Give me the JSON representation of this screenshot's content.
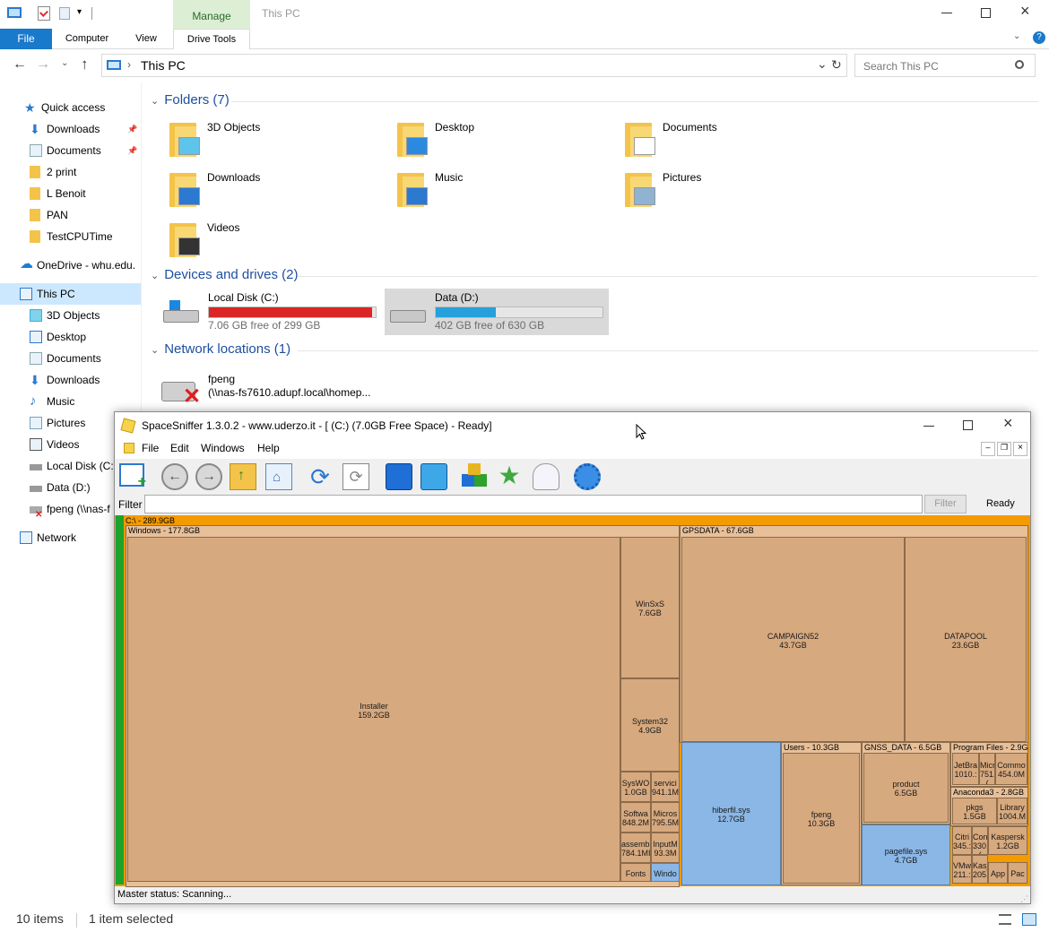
{
  "window": {
    "title": "This PC",
    "manage_tab": "Manage"
  },
  "ribbon": {
    "tabs": [
      "File",
      "Computer",
      "View",
      "Drive Tools"
    ]
  },
  "address": {
    "path": "This PC",
    "search_placeholder": "Search This PC"
  },
  "sidebar": {
    "items": [
      {
        "label": "Quick access",
        "icon": "star-icon"
      },
      {
        "label": "Downloads",
        "icon": "download-icon",
        "pinned": true
      },
      {
        "label": "Documents",
        "icon": "document-icon",
        "pinned": true
      },
      {
        "label": "2 print",
        "icon": "folder-icon"
      },
      {
        "label": "L Benoit",
        "icon": "folder-icon"
      },
      {
        "label": "PAN",
        "icon": "folder-icon"
      },
      {
        "label": "TestCPUTime",
        "icon": "folder-icon"
      },
      {
        "label": "OneDrive - whu.edu.",
        "icon": "cloud-icon"
      },
      {
        "label": "This PC",
        "icon": "computer-icon",
        "selected": true
      },
      {
        "label": "3D Objects",
        "icon": "cube-icon"
      },
      {
        "label": "Desktop",
        "icon": "desktop-icon"
      },
      {
        "label": "Documents",
        "icon": "document-icon"
      },
      {
        "label": "Downloads",
        "icon": "download-icon"
      },
      {
        "label": "Music",
        "icon": "music-icon"
      },
      {
        "label": "Pictures",
        "icon": "picture-icon"
      },
      {
        "label": "Videos",
        "icon": "video-icon"
      },
      {
        "label": "Local Disk (C:)",
        "icon": "drive-icon"
      },
      {
        "label": "Data (D:)",
        "icon": "drive-icon"
      },
      {
        "label": "fpeng (\\\\nas-f",
        "icon": "network-drive-icon"
      },
      {
        "label": "Network",
        "icon": "network-icon"
      }
    ]
  },
  "sections": {
    "folders": "Folders (7)",
    "drives": "Devices and drives (2)",
    "network": "Network locations (1)"
  },
  "folders": [
    "3D Objects",
    "Desktop",
    "Documents",
    "Downloads",
    "Music",
    "Pictures",
    "Videos"
  ],
  "drives": [
    {
      "name": "Local Disk (C:)",
      "free": "7.06 GB free of 299 GB",
      "used_fraction": 0.976,
      "bar_color": "#da2626"
    },
    {
      "name": "Data (D:)",
      "free": "402 GB free of 630 GB",
      "used_fraction": 0.362,
      "bar_color": "#26a0da"
    }
  ],
  "network_locations": [
    {
      "name": "fpeng",
      "path": "(\\\\nas-fs7610.adupf.local\\homep..."
    }
  ],
  "status": {
    "items": "10 items",
    "selected": "1 item selected"
  },
  "spacesniffer": {
    "title": "SpaceSniffer 1.3.0.2 - www.uderzo.it - [ (C:) (7.0GB Free Space) - Ready]",
    "menu": [
      "File",
      "Edit",
      "Windows",
      "Help"
    ],
    "filter_label": "Filter",
    "filter_button": "Filter",
    "state": "Ready",
    "master_status": "Master status: Scanning...",
    "root": "C:\\ - 289.9GB",
    "windows_header": "Windows - 177.8GB",
    "gpsdata_header": "GPSDATA - 67.6GB",
    "users_header": "Users - 10.3GB",
    "gnss_header": "GNSS_DATA - 6.5GB",
    "progfiles_header": "Program Files - 2.9G",
    "anaconda_header": "Anaconda3 - 2.8GB",
    "cells": {
      "installer": [
        "Installer",
        "159.2GB"
      ],
      "winsxs": [
        "WinSxS",
        "7.6GB"
      ],
      "system32": [
        "System32",
        "4.9GB"
      ],
      "syswo": [
        "SysWO",
        "1.0GB"
      ],
      "servici": [
        "servici",
        "941.1M"
      ],
      "softwa": [
        "Softwa",
        "848.2M"
      ],
      "micros": [
        "Micros",
        "795.5M"
      ],
      "assemb": [
        "assembl",
        "784.1MI"
      ],
      "inputm": [
        "InputM",
        "93.3M"
      ],
      "fonts": [
        "Fonts"
      ],
      "windo": [
        "Windo"
      ],
      "campaign": [
        "CAMPAIGN52",
        "43.7GB"
      ],
      "datapool": [
        "DATAPOOL",
        "23.6GB"
      ],
      "hiberfil": [
        "hiberfil.sys",
        "12.7GB"
      ],
      "fpeng": [
        "fpeng",
        "10.3GB"
      ],
      "product": [
        "product",
        "6.5GB"
      ],
      "pagefile": [
        "pagefile.sys",
        "4.7GB"
      ],
      "jetbra": [
        "JetBra",
        "1010.:"
      ],
      "micr": [
        "Micr",
        "751.("
      ],
      "commo": [
        "Commo",
        "454.0M"
      ],
      "pkgs": [
        "pkgs",
        "1.5GB"
      ],
      "library": [
        "Library",
        "1004.M"
      ],
      "citri": [
        "Citri",
        "345.:"
      ],
      "con": [
        "Con",
        "330.("
      ],
      "kaspersk": [
        "Kaspersk",
        "1.2GB"
      ],
      "vmw": [
        "VMw",
        "211.:"
      ],
      "kasj": [
        "Kasj",
        "205.:"
      ],
      "app": [
        "App"
      ],
      "pac": [
        "Pac"
      ]
    }
  }
}
